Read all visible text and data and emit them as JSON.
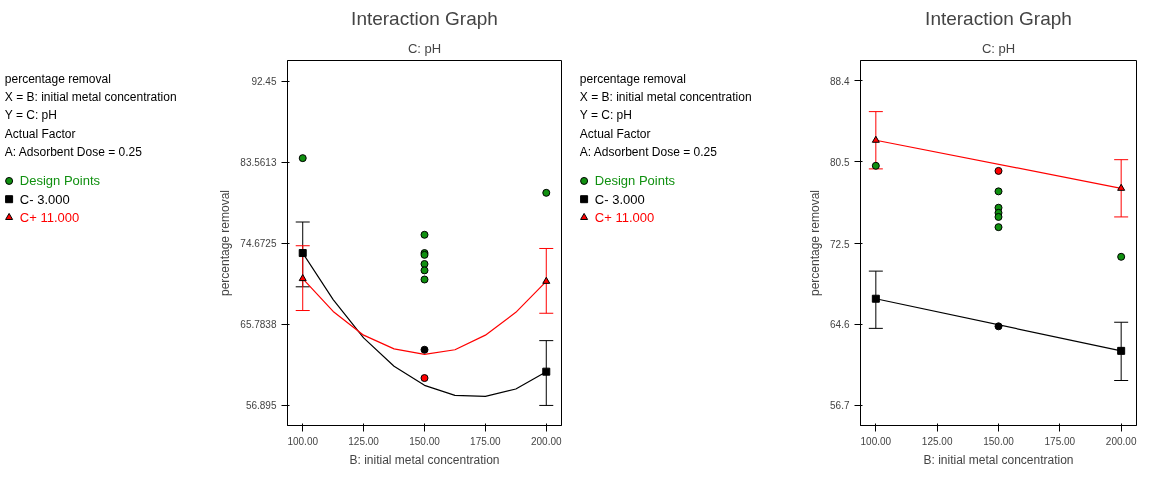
{
  "chart_data": [
    {
      "type": "line",
      "title": "Interaction Graph",
      "subtitle": "C: pH",
      "xlabel": "B: initial metal concentration",
      "ylabel": "percentage removal",
      "annotations": [
        "percentage removal",
        "X = B: initial metal concentration",
        "Y = C: pH",
        "Actual Factor",
        "A: Adsorbent Dose = 0.25"
      ],
      "xlim": [
        93.75,
        206.25
      ],
      "xticks": [
        {
          "value": 100,
          "label": "100.00"
        },
        {
          "value": 125,
          "label": "125.00"
        },
        {
          "value": 150,
          "label": "150.00"
        },
        {
          "value": 175,
          "label": "175.00"
        },
        {
          "value": 200,
          "label": "200.00"
        }
      ],
      "ylim": [
        54.7,
        94.7
      ],
      "yticks": [
        56.895,
        65.7838,
        74.6725,
        83.5613,
        92.45
      ],
      "grid": false,
      "legend": "left",
      "series": [
        {
          "name": "Design Points",
          "type": "scatter",
          "marker": "circle",
          "color": "#109010",
          "x": [
            100,
            150,
            150,
            150,
            150,
            150,
            150,
            200
          ],
          "values": [
            84.0,
            75.6,
            73.6,
            73.4,
            72.4,
            71.7,
            70.7,
            80.2
          ]
        },
        {
          "type": "scatter",
          "marker": "circle",
          "color": "#000000",
          "x": [
            150
          ],
          "values": [
            63.0
          ]
        },
        {
          "type": "scatter",
          "marker": "circle",
          "color": "#ff0000",
          "x": [
            150
          ],
          "values": [
            59.9
          ]
        },
        {
          "color": "#000000",
          "x": [
            100,
            112.5,
            125,
            137.5,
            150,
            162.5,
            175,
            187.5,
            200
          ],
          "values": [
            73.6,
            68.5,
            64.3,
            61.2,
            59.1,
            58.0,
            57.9,
            58.7,
            60.6
          ]
        },
        {
          "color": "#ff0000",
          "x": [
            100,
            112.5,
            125,
            137.5,
            150,
            162.5,
            175,
            187.5,
            200
          ],
          "values": [
            70.8,
            67.2,
            64.6,
            63.1,
            62.5,
            63.0,
            64.6,
            67.1,
            70.5
          ]
        },
        {
          "name": "C- 3.000",
          "type": "scatter",
          "marker": "square",
          "color": "#000000",
          "x": [
            100,
            200
          ],
          "values": [
            73.6,
            60.6
          ],
          "errors": [
            [
              69.9,
              77.0
            ],
            [
              56.9,
              64.0
            ]
          ]
        },
        {
          "name": "C+ 11.000",
          "type": "scatter",
          "marker": "triangle",
          "color": "#ff0000",
          "x": [
            100,
            200
          ],
          "values": [
            70.8,
            70.5
          ],
          "errors": [
            [
              67.3,
              74.4
            ],
            [
              67.0,
              74.1
            ]
          ]
        }
      ]
    },
    {
      "type": "line",
      "title": "Interaction Graph",
      "subtitle": "C: pH",
      "xlabel": "B: initial metal concentration",
      "ylabel": "percentage removal",
      "annotations": [
        "percentage removal",
        "X = B: initial metal concentration",
        "Y = C: pH",
        "Actual Factor",
        "A: Adsorbent Dose = 0.25"
      ],
      "xlim": [
        93.75,
        206.25
      ],
      "xticks": [
        {
          "value": 100,
          "label": "100.00"
        },
        {
          "value": 125,
          "label": "125.00"
        },
        {
          "value": 150,
          "label": "150.00"
        },
        {
          "value": 175,
          "label": "175.00"
        },
        {
          "value": 200,
          "label": "200.00"
        }
      ],
      "ylim": [
        54.7,
        90.4
      ],
      "yticks": [
        56.7,
        64.6,
        72.5,
        80.5,
        88.4
      ],
      "grid": false,
      "legend": "left",
      "series": [
        {
          "name": "Design Points",
          "type": "scatter",
          "marker": "circle",
          "color": "#109010",
          "x": [
            100,
            150,
            150,
            150,
            150,
            150,
            200
          ],
          "values": [
            80.1,
            77.6,
            76.0,
            75.5,
            75.1,
            74.1,
            71.2
          ]
        },
        {
          "type": "scatter",
          "marker": "circle",
          "color": "#ff0000",
          "x": [
            150
          ],
          "values": [
            79.6
          ]
        },
        {
          "type": "scatter",
          "marker": "circle",
          "color": "#000000",
          "x": [
            150
          ],
          "values": [
            64.4
          ]
        },
        {
          "color": "#ff0000",
          "x": [
            100,
            200
          ],
          "values": [
            82.6,
            77.9
          ]
        },
        {
          "color": "#000000",
          "x": [
            100,
            200
          ],
          "values": [
            67.1,
            62.0
          ]
        },
        {
          "name": "C- 3.000",
          "type": "scatter",
          "marker": "square",
          "color": "#000000",
          "x": [
            100,
            200
          ],
          "values": [
            67.1,
            62.0
          ],
          "errors": [
            [
              64.2,
              69.8
            ],
            [
              59.1,
              64.8
            ]
          ]
        },
        {
          "name": "C+ 11.000",
          "type": "scatter",
          "marker": "triangle",
          "color": "#ff0000",
          "x": [
            100,
            200
          ],
          "values": [
            82.6,
            77.9
          ],
          "errors": [
            [
              79.8,
              85.4
            ],
            [
              75.1,
              80.7
            ]
          ]
        }
      ]
    }
  ]
}
